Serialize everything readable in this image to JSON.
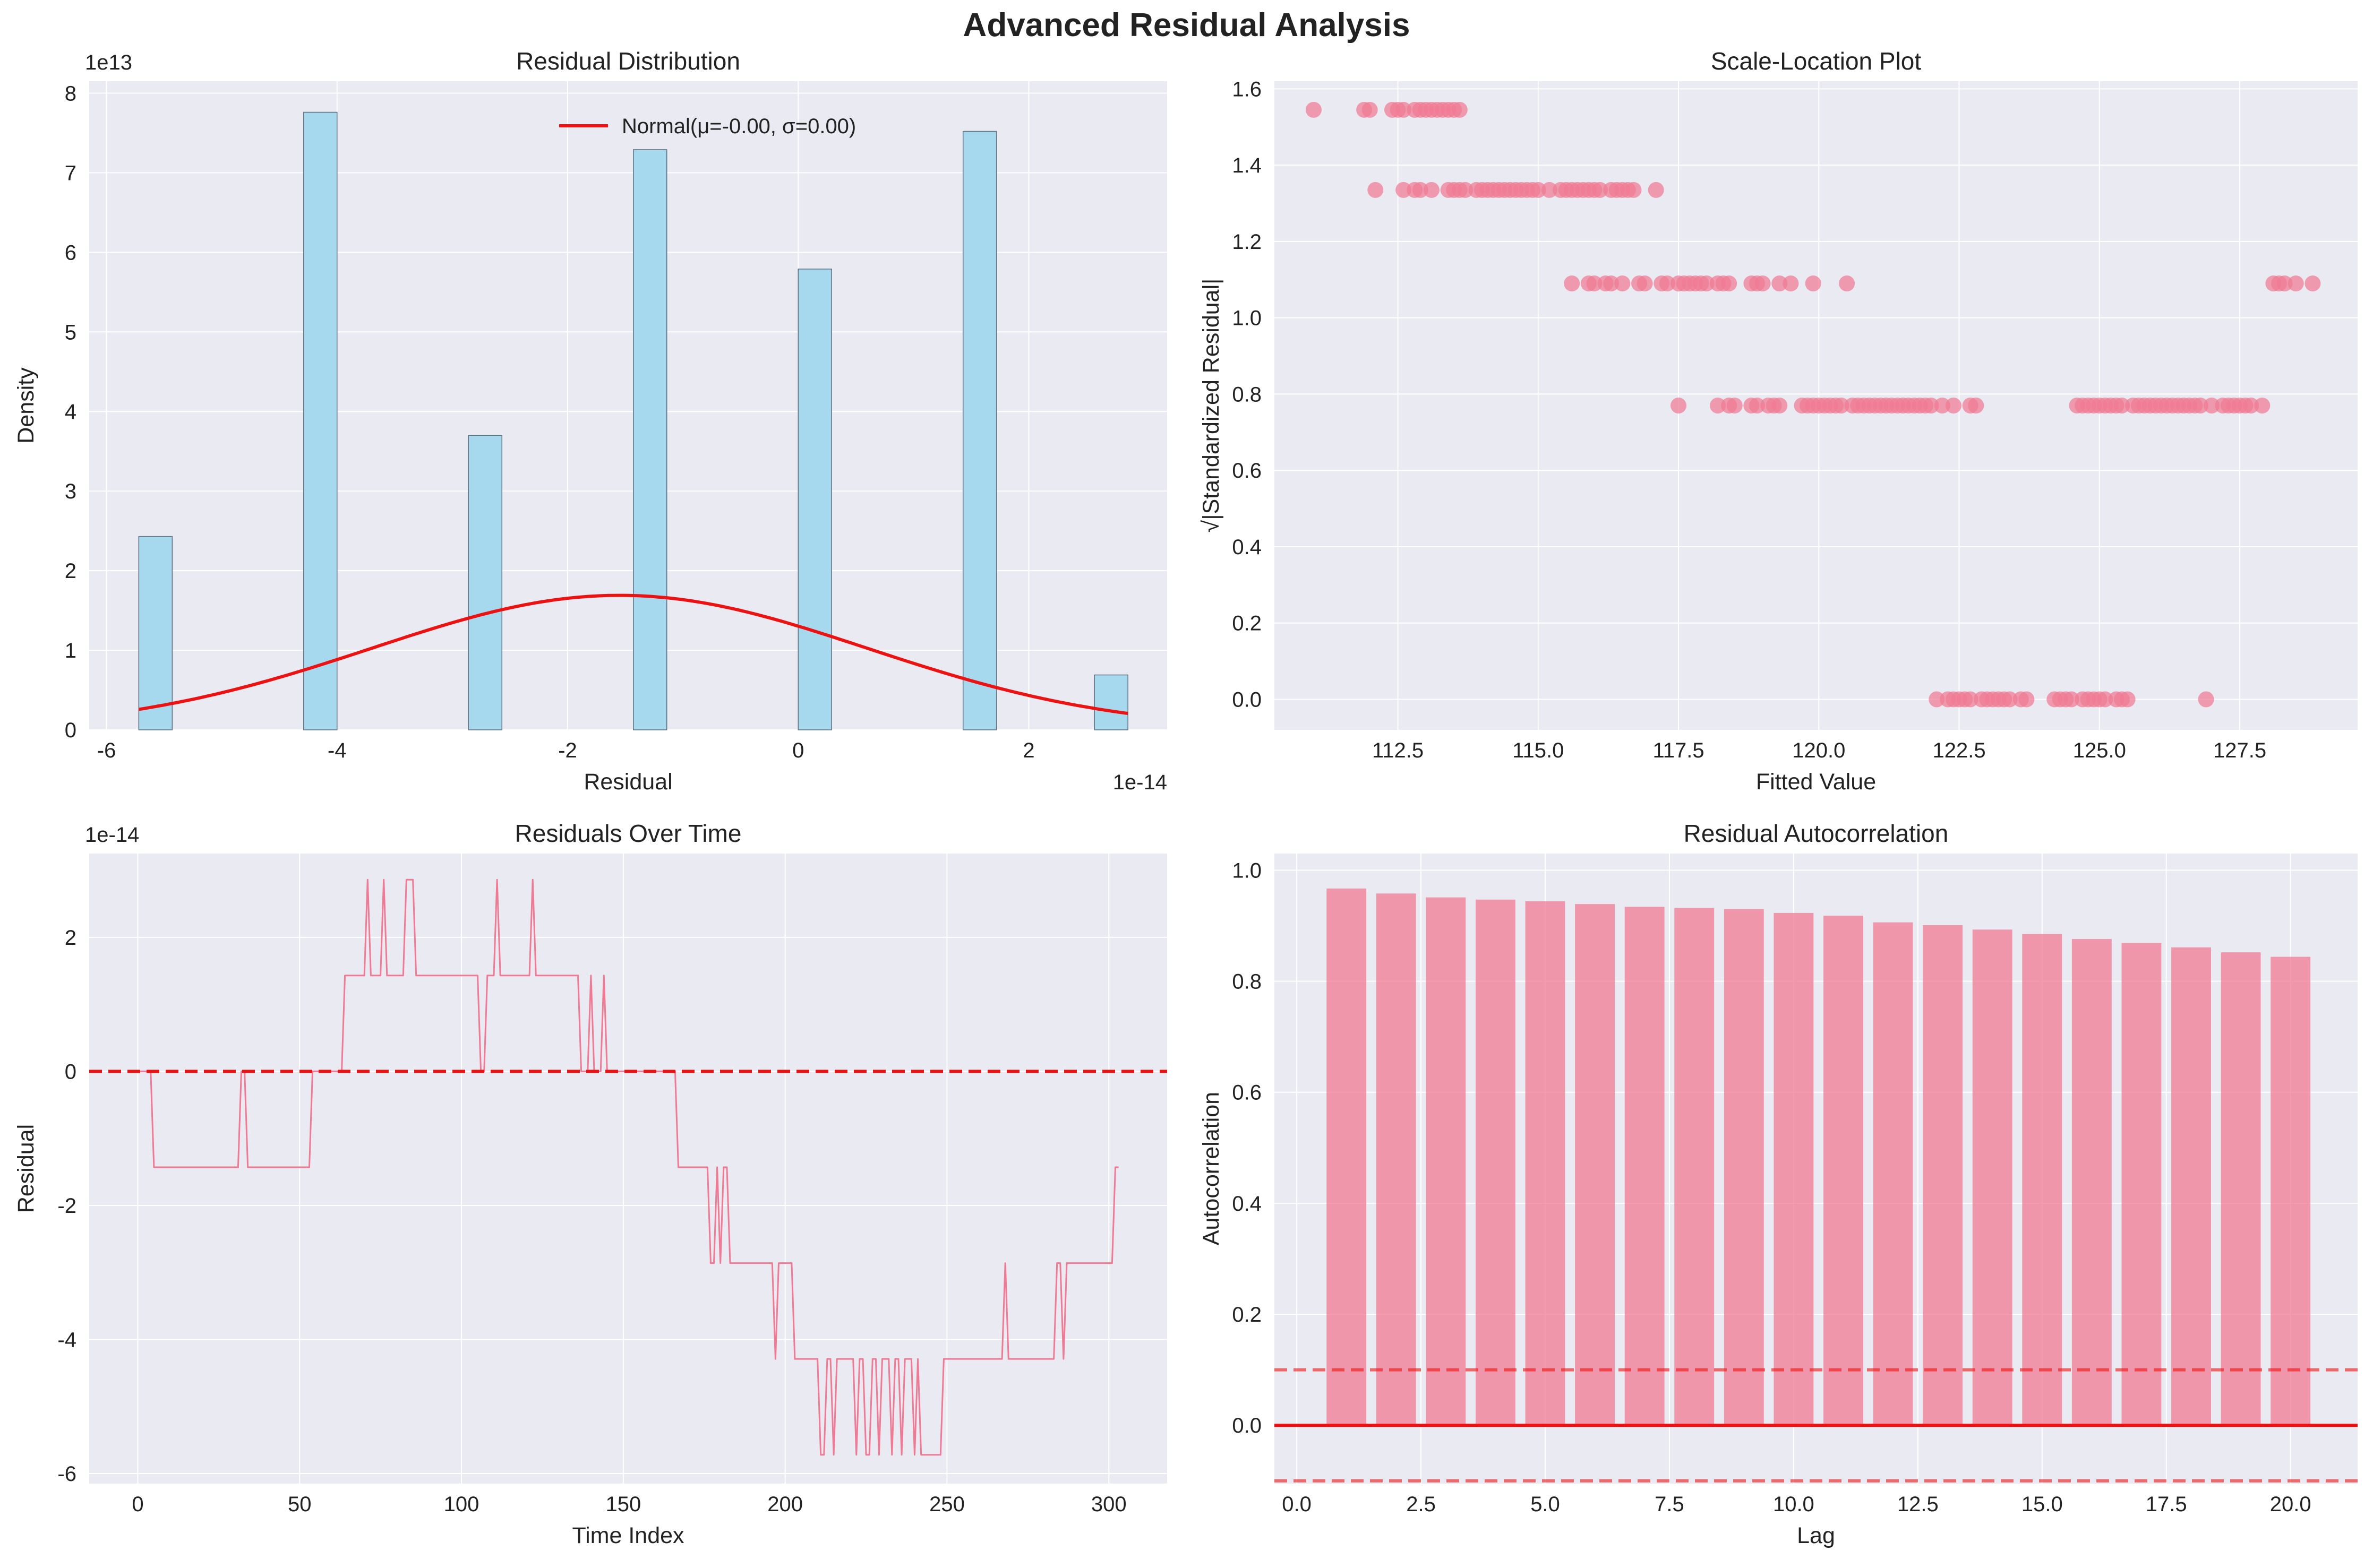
{
  "figure": {
    "title": "Advanced Residual Analysis"
  },
  "colors": {
    "panel_bg": "#EAEAF2",
    "grid": "#FFFFFF",
    "hist_fill": "#A6D8EE",
    "hist_edge": "#5F6F80",
    "normal_curve": "#EE1111",
    "pink": "#F07A93",
    "ref_red": "#EE1111"
  },
  "chart_data": [
    {
      "type": "bar",
      "subtype": "histogram",
      "title": "Residual Distribution",
      "xlabel": "Residual",
      "ylabel": "Density",
      "x_offset_text": "1e-14",
      "y_offset_text": "1e13",
      "xlim": [
        -6.15,
        3.2
      ],
      "ylim": [
        0,
        8.15
      ],
      "xticks": [
        -6,
        -4,
        -2,
        0,
        2
      ],
      "xtick_labels": [
        "-6",
        "-4",
        "-2",
        "0",
        "2"
      ],
      "yticks": [
        0,
        1,
        2,
        3,
        4,
        5,
        6,
        7,
        8
      ],
      "ytick_labels": [
        "0",
        "1",
        "2",
        "3",
        "4",
        "5",
        "6",
        "7",
        "8"
      ],
      "bars": [
        {
          "x0": -5.72,
          "x1": -5.43,
          "density": 2.43
        },
        {
          "x0": -4.29,
          "x1": -4.0,
          "density": 7.76
        },
        {
          "x0": -2.86,
          "x1": -2.57,
          "density": 3.7
        },
        {
          "x0": -1.43,
          "x1": -1.14,
          "density": 7.29
        },
        {
          "x0": 0.0,
          "x1": 0.29,
          "density": 5.79
        },
        {
          "x0": 1.43,
          "x1": 1.72,
          "density": 7.52
        },
        {
          "x0": 2.57,
          "x1": 2.86,
          "density": 0.69
        }
      ],
      "normal_fit": {
        "mu": -1.55,
        "sigma": 2.15,
        "peak": 1.69,
        "x_range": [
          -5.72,
          2.86
        ]
      },
      "legend": {
        "label": "Normal(μ=-0.00, σ=0.00)",
        "position": "upper center"
      }
    },
    {
      "type": "scatter",
      "title": "Scale-Location Plot",
      "xlabel": "Fitted Value",
      "ylabel": "√|Standardized Residual|",
      "xlim": [
        110.3,
        129.6
      ],
      "ylim": [
        -0.08,
        1.62
      ],
      "xticks": [
        112.5,
        115,
        117.5,
        120,
        122.5,
        125,
        127.5
      ],
      "xtick_labels": [
        "112.5",
        "115.0",
        "117.5",
        "120.0",
        "122.5",
        "125.0",
        "127.5"
      ],
      "yticks": [
        0,
        0.2,
        0.4,
        0.6,
        0.8,
        1.0,
        1.2,
        1.4,
        1.6
      ],
      "ytick_labels": [
        "0.0",
        "0.2",
        "0.4",
        "0.6",
        "0.8",
        "1.0",
        "1.2",
        "1.4",
        "1.6"
      ],
      "levels": [
        {
          "y": 1.545,
          "x": [
            111.0,
            111.9,
            112.0,
            112.4,
            112.5,
            112.6,
            112.8,
            112.9,
            113.0,
            113.1,
            113.2,
            113.3,
            113.4,
            113.5,
            113.6
          ]
        },
        {
          "y": 1.335,
          "x": [
            112.1,
            112.6,
            112.8,
            112.9,
            113.1,
            113.4,
            113.5,
            113.6,
            113.7,
            113.9,
            114.0,
            114.1,
            114.2,
            114.3,
            114.4,
            114.5,
            114.6,
            114.7,
            114.8,
            114.9,
            115.0,
            115.2,
            115.4,
            115.5,
            115.6,
            115.7,
            115.8,
            115.9,
            116.0,
            116.1,
            116.3,
            116.4,
            116.5,
            116.6,
            116.7,
            117.1
          ]
        },
        {
          "y": 1.09,
          "x": [
            115.6,
            115.9,
            116.0,
            116.2,
            116.3,
            116.5,
            116.8,
            116.9,
            117.2,
            117.3,
            117.5,
            117.6,
            117.7,
            117.8,
            117.9,
            118.0,
            118.2,
            118.3,
            118.4,
            118.8,
            118.9,
            119.0,
            119.3,
            119.5,
            119.9,
            120.5,
            128.1,
            128.2,
            128.3,
            128.5,
            128.8
          ]
        },
        {
          "y": 0.77,
          "x": [
            117.5,
            118.2,
            118.4,
            118.5,
            118.8,
            118.9,
            119.1,
            119.2,
            119.3,
            119.7,
            119.8,
            119.9,
            120.0,
            120.1,
            120.2,
            120.3,
            120.4,
            120.6,
            120.7,
            120.8,
            120.9,
            121.0,
            121.1,
            121.2,
            121.3,
            121.4,
            121.5,
            121.6,
            121.7,
            121.8,
            121.9,
            122.0,
            122.2,
            122.4,
            122.7,
            122.8,
            124.6,
            124.7,
            124.8,
            124.9,
            125.0,
            125.1,
            125.2,
            125.3,
            125.4,
            125.6,
            125.7,
            125.8,
            125.9,
            126.0,
            126.1,
            126.2,
            126.3,
            126.4,
            126.5,
            126.6,
            126.7,
            126.8,
            127.0,
            127.2,
            127.3,
            127.4,
            127.5,
            127.6,
            127.7,
            127.9
          ]
        },
        {
          "y": 0.0,
          "x": [
            122.1,
            122.3,
            122.4,
            122.5,
            122.6,
            122.7,
            122.9,
            123.0,
            123.1,
            123.2,
            123.3,
            123.4,
            123.6,
            123.7,
            124.2,
            124.3,
            124.4,
            124.5,
            124.7,
            124.8,
            124.9,
            125.0,
            125.1,
            125.3,
            125.4,
            125.5,
            126.9
          ]
        }
      ]
    },
    {
      "type": "line",
      "title": "Residuals Over Time",
      "xlabel": "Time Index",
      "ylabel": "Residual",
      "y_offset_text": "1e-14",
      "xlim": [
        -15,
        318
      ],
      "ylim": [
        -6.15,
        3.25
      ],
      "xticks": [
        0,
        50,
        100,
        150,
        200,
        250,
        300
      ],
      "xtick_labels": [
        "0",
        "50",
        "100",
        "150",
        "200",
        "250",
        "300"
      ],
      "yticks": [
        -6,
        -4,
        -2,
        0,
        2
      ],
      "ytick_labels": [
        "-6",
        "-4",
        "-2",
        "0",
        "2"
      ],
      "reference_line": {
        "y": 0,
        "style": "dashed"
      },
      "levels": {
        "L0": -5.72,
        "L1": -4.29,
        "L2": -2.86,
        "L3": -1.43,
        "L4": 0,
        "L5": 1.43,
        "L6": 2.86
      },
      "segments": [
        [
          0,
          4,
          "L4"
        ],
        [
          5,
          31,
          "L3"
        ],
        [
          32,
          33,
          "L4"
        ],
        [
          34,
          53,
          "L3"
        ],
        [
          54,
          63,
          "L4"
        ],
        [
          64,
          70,
          "L5"
        ],
        [
          71,
          71,
          "L6"
        ],
        [
          72,
          75,
          "L5"
        ],
        [
          76,
          76,
          "L6"
        ],
        [
          77,
          82,
          "L5"
        ],
        [
          83,
          85,
          "L6"
        ],
        [
          86,
          105,
          "L5"
        ],
        [
          106,
          107,
          "L4"
        ],
        [
          108,
          110,
          "L5"
        ],
        [
          111,
          111,
          "L6"
        ],
        [
          112,
          121,
          "L5"
        ],
        [
          122,
          122,
          "L6"
        ],
        [
          123,
          136,
          "L5"
        ],
        [
          137,
          139,
          "L4"
        ],
        [
          140,
          140,
          "L5"
        ],
        [
          141,
          143,
          "L4"
        ],
        [
          144,
          144,
          "L5"
        ],
        [
          145,
          166,
          "L4"
        ],
        [
          167,
          176,
          "L3"
        ],
        [
          177,
          178,
          "L2"
        ],
        [
          179,
          179,
          "L3"
        ],
        [
          180,
          180,
          "L2"
        ],
        [
          181,
          182,
          "L3"
        ],
        [
          183,
          196,
          "L2"
        ],
        [
          197,
          197,
          "L1"
        ],
        [
          198,
          202,
          "L2"
        ],
        [
          203,
          210,
          "L1"
        ],
        [
          211,
          212,
          "L0"
        ],
        [
          213,
          214,
          "L1"
        ],
        [
          215,
          215,
          "L0"
        ],
        [
          216,
          221,
          "L1"
        ],
        [
          222,
          222,
          "L0"
        ],
        [
          223,
          224,
          "L1"
        ],
        [
          225,
          226,
          "L0"
        ],
        [
          227,
          228,
          "L1"
        ],
        [
          229,
          229,
          "L0"
        ],
        [
          230,
          232,
          "L1"
        ],
        [
          233,
          233,
          "L0"
        ],
        [
          234,
          235,
          "L1"
        ],
        [
          236,
          236,
          "L0"
        ],
        [
          237,
          239,
          "L1"
        ],
        [
          240,
          240,
          "L0"
        ],
        [
          241,
          241,
          "L1"
        ],
        [
          242,
          248,
          "L0"
        ],
        [
          249,
          267,
          "L1"
        ],
        [
          268,
          268,
          "L2"
        ],
        [
          269,
          283,
          "L1"
        ],
        [
          284,
          285,
          "L2"
        ],
        [
          286,
          286,
          "L1"
        ],
        [
          287,
          301,
          "L2"
        ],
        [
          302,
          303,
          "L3"
        ]
      ]
    },
    {
      "type": "bar",
      "title": "Residual Autocorrelation",
      "xlabel": "Lag",
      "ylabel": "Autocorrelation",
      "xlim": [
        -0.45,
        21.35
      ],
      "ylim": [
        -0.105,
        1.03
      ],
      "xticks": [
        0,
        2.5,
        5,
        7.5,
        10,
        12.5,
        15,
        17.5,
        20
      ],
      "xtick_labels": [
        "0.0",
        "2.5",
        "5.0",
        "7.5",
        "10.0",
        "12.5",
        "15.0",
        "17.5",
        "20.0"
      ],
      "yticks": [
        0,
        0.2,
        0.4,
        0.6,
        0.8,
        1.0
      ],
      "ytick_labels": [
        "0.0",
        "0.2",
        "0.4",
        "0.6",
        "0.8",
        "1.0"
      ],
      "lags": [
        1,
        2,
        3,
        4,
        5,
        6,
        7,
        8,
        9,
        10,
        11,
        12,
        13,
        14,
        15,
        16,
        17,
        18,
        19,
        20
      ],
      "values": [
        0.967,
        0.958,
        0.951,
        0.947,
        0.944,
        0.939,
        0.934,
        0.932,
        0.93,
        0.923,
        0.918,
        0.906,
        0.901,
        0.893,
        0.885,
        0.876,
        0.869,
        0.861,
        0.852,
        0.844
      ],
      "bar_width": 0.8,
      "zero_line": 0,
      "confidence_bounds": [
        0.1,
        -0.1
      ]
    }
  ]
}
